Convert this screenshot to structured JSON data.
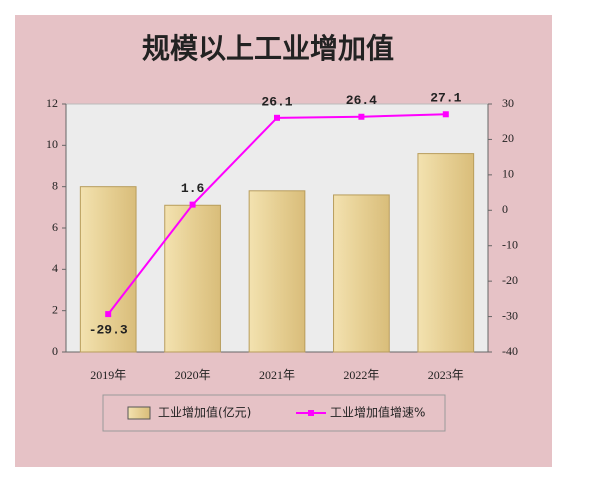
{
  "chart_data": {
    "type": "bar",
    "title": "规模以上工业增加值",
    "categories": [
      "2019年",
      "2020年",
      "2021年",
      "2022年",
      "2023年"
    ],
    "series": [
      {
        "name": "工业增加值(亿元)",
        "color": "#e6cf93",
        "type": "bar",
        "values": [
          8.0,
          7.1,
          7.8,
          7.6,
          9.6
        ]
      },
      {
        "name": "工业增加值增速%",
        "color": "#ff00ff",
        "type": "line",
        "axis": "y2",
        "values": [
          -29.3,
          1.6,
          26.1,
          26.4,
          27.1
        ]
      }
    ],
    "ylim": [
      0,
      12
    ],
    "yticks": [
      0,
      2,
      4,
      6,
      8,
      10,
      12
    ],
    "y2lim": [
      -40,
      30
    ],
    "y2ticks": [
      -40,
      -30,
      -20,
      -10,
      0,
      10,
      20,
      30
    ]
  }
}
